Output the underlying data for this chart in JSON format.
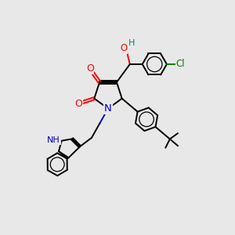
{
  "background_color": "#e8e8e8",
  "atom_colors": {
    "O": "#ff0000",
    "N": "#0000cc",
    "Cl": "#008000",
    "NH_blue": "#0000cc",
    "H_green": "#008080",
    "C": "#000000"
  },
  "font_size_atoms": 8.5,
  "line_width": 1.4,
  "figsize": [
    3.0,
    3.0
  ],
  "dpi": 100
}
